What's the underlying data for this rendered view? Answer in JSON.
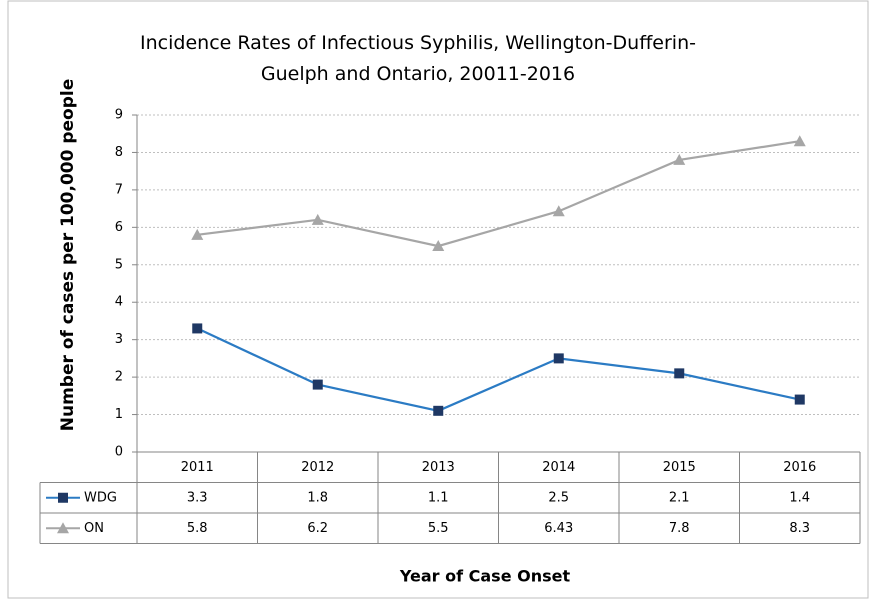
{
  "chart_data": {
    "type": "line",
    "title": "Incidence Rates of Infectious Syphilis, Wellington-Dufferin-Guelph and Ontario, 20011-2016",
    "ylabel": "Number of cases per 100,000 people",
    "xlabel": "Year of Case Onset",
    "categories": [
      "2011",
      "2012",
      "2013",
      "2014",
      "2015",
      "2016"
    ],
    "series": [
      {
        "name": "WDG",
        "color": "#2b7bc4",
        "marker_color": "#1f3864",
        "marker": "square",
        "values": [
          3.3,
          1.8,
          1.1,
          2.5,
          2.1,
          1.4
        ]
      },
      {
        "name": "ON",
        "color": "#a6a6a6",
        "marker_color": "#a6a6a6",
        "marker": "triangle",
        "values": [
          5.8,
          6.2,
          5.5,
          6.43,
          7.8,
          8.3
        ]
      }
    ],
    "ylim": [
      0,
      9
    ],
    "yticks": [
      0,
      1,
      2,
      3,
      4,
      5,
      6,
      7,
      8,
      9
    ],
    "grid": true,
    "data_table": true
  }
}
